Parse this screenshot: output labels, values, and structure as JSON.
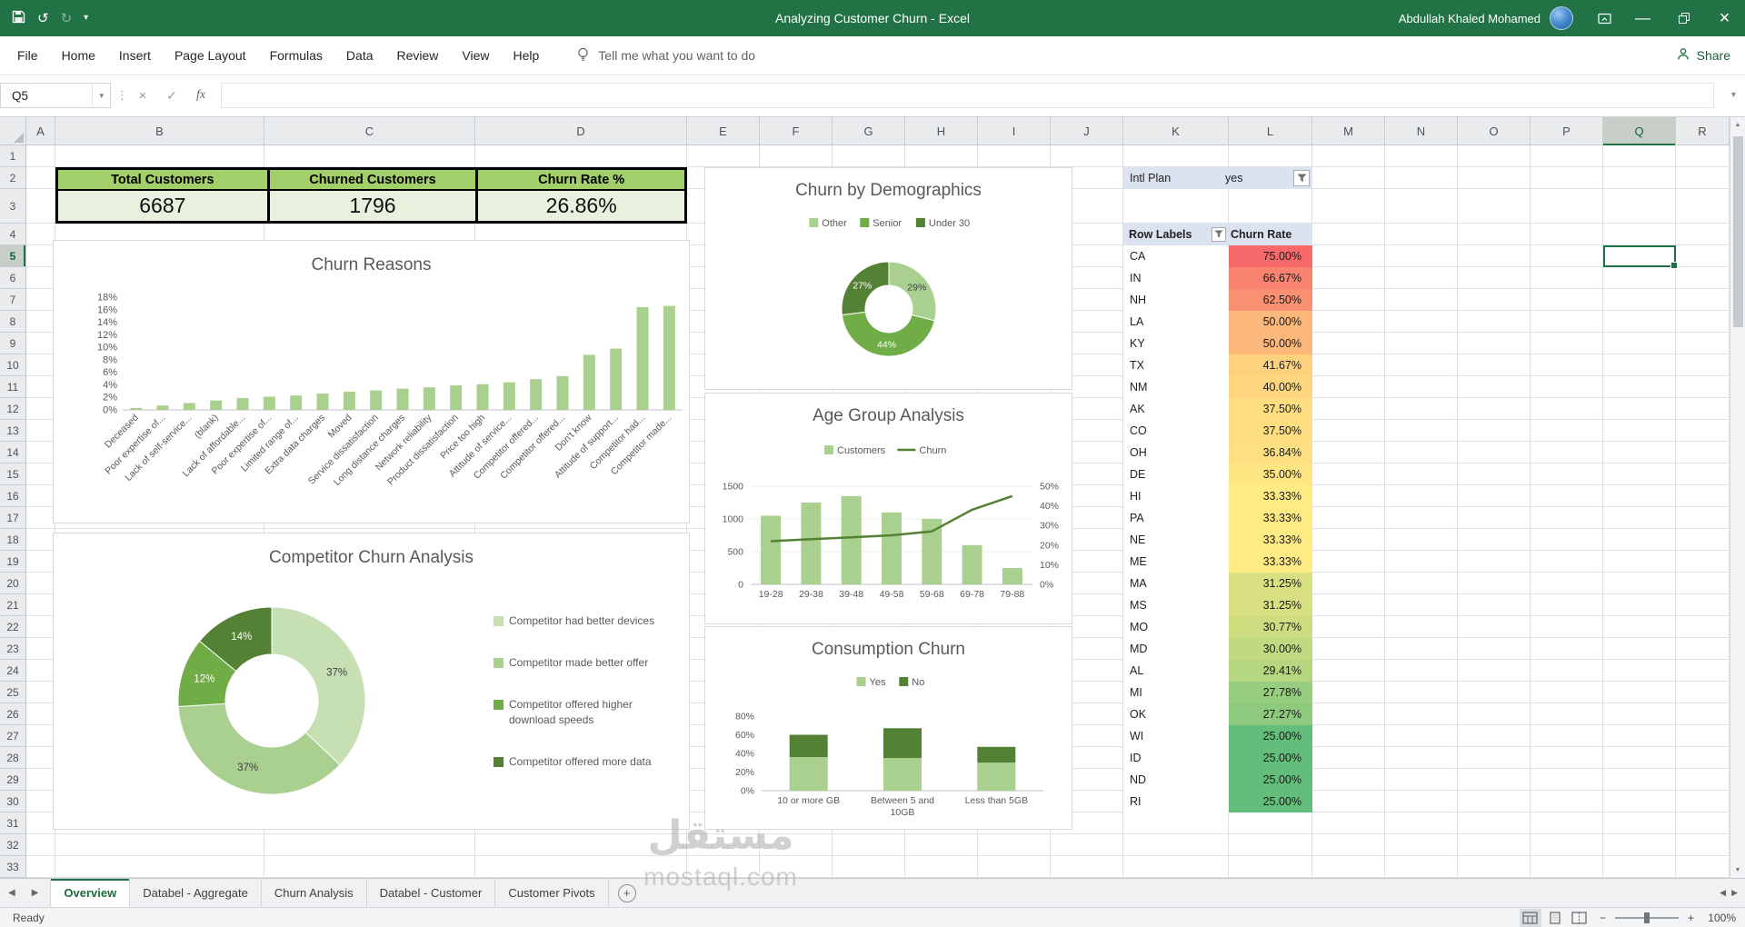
{
  "colors": {
    "titlebar_green": "#217346",
    "accent_green": "#1E7145",
    "kpi_header_bg": "#A3CF6B",
    "kpi_value_bg": "#E7F1DE",
    "chart_light_green": "#A9D08E",
    "chart_dark_green": "#548235",
    "slicer_bg": "#DBE2F0"
  },
  "titlebar": {
    "title": "Analyzing Customer Churn  -  Excel",
    "user": "Abdullah Khaled Mohamed"
  },
  "ribbon": {
    "tabs": [
      "File",
      "Home",
      "Insert",
      "Page Layout",
      "Formulas",
      "Data",
      "Review",
      "View",
      "Help"
    ],
    "tell_me": "Tell me what you want to do",
    "share_label": "Share"
  },
  "formula_bar": {
    "name_box": "Q5",
    "fx_label": "fx",
    "content": ""
  },
  "grid": {
    "columns": [
      [
        "A",
        32
      ],
      [
        "B",
        230
      ],
      [
        "C",
        232
      ],
      [
        "D",
        233
      ],
      [
        "E",
        80
      ],
      [
        "F",
        80
      ],
      [
        "G",
        80
      ],
      [
        "H",
        80
      ],
      [
        "I",
        80
      ],
      [
        "J",
        80
      ],
      [
        "K",
        116
      ],
      [
        "L",
        92
      ],
      [
        "M",
        80
      ],
      [
        "N",
        80
      ],
      [
        "O",
        80
      ],
      [
        "P",
        80
      ],
      [
        "Q",
        80
      ],
      [
        "R",
        59
      ]
    ],
    "rows": 33,
    "selected": {
      "col": "Q",
      "row": 5
    }
  },
  "kpis": [
    {
      "label": "Total Customers",
      "value": "6687"
    },
    {
      "label": "Churned Customers",
      "value": "1796"
    },
    {
      "label": "Churn Rate %",
      "value": "26.86%"
    }
  ],
  "slicer": {
    "label": "Intl Plan",
    "value": "yes"
  },
  "pivot": {
    "headers": [
      "Row Labels",
      "Churn Rate"
    ],
    "rows": [
      [
        "CA",
        "75.00%"
      ],
      [
        "IN",
        "66.67%"
      ],
      [
        "NH",
        "62.50%"
      ],
      [
        "LA",
        "50.00%"
      ],
      [
        "KY",
        "50.00%"
      ],
      [
        "TX",
        "41.67%"
      ],
      [
        "NM",
        "40.00%"
      ],
      [
        "AK",
        "37.50%"
      ],
      [
        "CO",
        "37.50%"
      ],
      [
        "OH",
        "36.84%"
      ],
      [
        "DE",
        "35.00%"
      ],
      [
        "HI",
        "33.33%"
      ],
      [
        "PA",
        "33.33%"
      ],
      [
        "NE",
        "33.33%"
      ],
      [
        "ME",
        "33.33%"
      ],
      [
        "MA",
        "31.25%"
      ],
      [
        "MS",
        "31.25%"
      ],
      [
        "MO",
        "30.77%"
      ],
      [
        "MD",
        "30.00%"
      ],
      [
        "AL",
        "29.41%"
      ],
      [
        "MI",
        "27.78%"
      ],
      [
        "OK",
        "27.27%"
      ],
      [
        "WI",
        "25.00%"
      ],
      [
        "ID",
        "25.00%"
      ],
      [
        "ND",
        "25.00%"
      ],
      [
        "RI",
        "25.00%"
      ]
    ],
    "heat": {
      "min": 25,
      "mid": 33.33,
      "max": 75,
      "min_color": "#63BE7B",
      "mid_color": "#FFEB84",
      "max_color": "#F8696B"
    }
  },
  "chart_data": [
    {
      "id": "churn-reasons",
      "type": "bar",
      "title": "Churn Reasons",
      "ylim": [
        0,
        18
      ],
      "ytick_step": 2,
      "ytick_format": "percent",
      "bar_color": "#A9D08E",
      "categories": [
        "Deceased",
        "Poor expertise of...",
        "Lack of self-service...",
        "(blank)",
        "Lack of affordable...",
        "Poor expertise of...",
        "Limited range of...",
        "Extra data charges",
        "Moved",
        "Service dissatisfaction",
        "Long distance charges",
        "Network reliability",
        "Product dissatisfaction",
        "Price too high",
        "Attitude of service...",
        "Competitor offered...",
        "Competitor offered...",
        "Don't know",
        "Attitude of support...",
        "Competitor had...",
        "Competitor made..."
      ],
      "values": [
        0.3,
        0.7,
        1.1,
        1.5,
        1.9,
        2.1,
        2.3,
        2.6,
        2.9,
        3.1,
        3.4,
        3.6,
        3.9,
        4.1,
        4.4,
        4.9,
        5.4,
        8.8,
        9.8,
        16.4,
        16.6
      ]
    },
    {
      "id": "competitor",
      "type": "pie",
      "donut": true,
      "title": "Competitor Churn Analysis",
      "legend_position": "right",
      "slices": [
        {
          "label": "Competitor had better devices",
          "value": 37,
          "color": "#C6E0B4",
          "label_color": "#404040"
        },
        {
          "label": "Competitor made better offer",
          "value": 37,
          "color": "#A9D08E",
          "label_color": "#404040"
        },
        {
          "label": "Competitor offered higher download speeds",
          "value": 12,
          "color": "#70AD47",
          "label_color": "#FFFFFF"
        },
        {
          "label": "Competitor offered more data",
          "value": 14,
          "color": "#548235",
          "label_color": "#FFFFFF"
        }
      ]
    },
    {
      "id": "demographics",
      "type": "pie",
      "donut": true,
      "title": "Churn by Demographics",
      "legend_position": "top",
      "slices": [
        {
          "label": "Other",
          "value": 29,
          "color": "#A9D08E",
          "label_color": "#404040"
        },
        {
          "label": "Senior",
          "value": 44,
          "color": "#70AD47",
          "label_color": "#FFFFFF"
        },
        {
          "label": "Under 30",
          "value": 27,
          "color": "#548235",
          "label_color": "#FFFFFF"
        }
      ]
    },
    {
      "id": "age-group",
      "type": "bar+line",
      "title": "Age Group Analysis",
      "categories": [
        "19-28",
        "29-38",
        "39-48",
        "49-58",
        "59-68",
        "69-78",
        "79-88"
      ],
      "series": [
        {
          "name": "Customers",
          "type": "bar",
          "values": [
            1050,
            1250,
            1350,
            1100,
            1000,
            600,
            250
          ],
          "color": "#A9D08E",
          "axis": "left"
        },
        {
          "name": "Churn",
          "type": "line",
          "values": [
            22,
            23,
            24,
            25,
            27,
            38,
            45
          ],
          "color": "#548235",
          "axis": "right"
        }
      ],
      "left_ylim": [
        0,
        1500
      ],
      "left_tick_step": 500,
      "right_ylim": [
        0,
        50
      ],
      "right_tick_step": 10,
      "right_tick_format": "percent"
    },
    {
      "id": "consumption",
      "type": "stacked-bar",
      "title": "Consumption Churn",
      "categories": [
        "10 or more GB",
        "Between 5 and 10GB",
        "Less than 5GB"
      ],
      "series": [
        {
          "name": "Yes",
          "values": [
            36,
            35,
            30
          ],
          "color": "#A9D08E"
        },
        {
          "name": "No",
          "values": [
            24,
            32,
            17
          ],
          "color": "#548235"
        }
      ],
      "ylim": [
        0,
        80
      ],
      "ytick_step": 20,
      "ytick_format": "percent"
    }
  ],
  "sheet_tabs": {
    "tabs": [
      "Overview",
      "Databel - Aggregate",
      "Churn Analysis",
      "Databel - Customer",
      "Customer Pivots"
    ],
    "active": "Overview"
  },
  "status_bar": {
    "ready": "Ready",
    "zoom": "100%"
  },
  "watermark": {
    "line1": "مستقل",
    "line2": "mostaql.com"
  },
  "icons": {
    "undo": "↺",
    "redo": "↻",
    "dropdown": "▾",
    "cancel": "×",
    "enter": "✓",
    "minimize": "—",
    "close": "×",
    "tab_prev": "◀",
    "tab_next": "▶",
    "add_sheet": "+",
    "zoom_out": "−",
    "zoom_in": "+",
    "scroll_up": "▲",
    "scroll_down": "▼",
    "scroll_left": "◀",
    "scroll_right": "▶"
  }
}
